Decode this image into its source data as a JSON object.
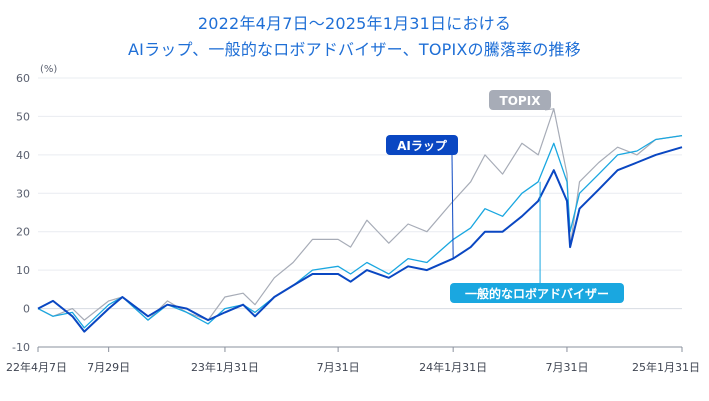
{
  "chart_data": {
    "type": "line",
    "title": [
      "2022年4月7日〜2025年1月31日における",
      "AIラップ、一般的なロボアドバイザー、TOPIXの騰落率の推移"
    ],
    "y_unit": "(%)",
    "ylim": [
      -10,
      60
    ],
    "y_ticks": [
      "60",
      "50",
      "40",
      "30",
      "20",
      "10",
      "0",
      "-10"
    ],
    "x_tick_labels": [
      "22年4月7日",
      "7月29日",
      "23年1月31日",
      "7月31日",
      "24年1月31日",
      "7月31日",
      "25年1月31日"
    ],
    "x_tick_dates": [
      "2022-04-07",
      "2022-07-29",
      "2023-01-31",
      "2023-07-31",
      "2024-01-31",
      "2024-07-31",
      "2025-01-31"
    ],
    "grid": true,
    "series": [
      {
        "name": "TOPIX",
        "color": "#a7acb7",
        "points": [
          [
            "2022-04-07",
            0
          ],
          [
            "2022-05-01",
            -2
          ],
          [
            "2022-06-01",
            0
          ],
          [
            "2022-06-20",
            -3
          ],
          [
            "2022-07-29",
            2
          ],
          [
            "2022-08-20",
            3
          ],
          [
            "2022-09-30",
            -3
          ],
          [
            "2022-10-31",
            2
          ],
          [
            "2022-12-01",
            -1
          ],
          [
            "2023-01-04",
            -3
          ],
          [
            "2023-01-31",
            3
          ],
          [
            "2023-03-01",
            4
          ],
          [
            "2023-03-20",
            1
          ],
          [
            "2023-04-20",
            8
          ],
          [
            "2023-05-20",
            12
          ],
          [
            "2023-06-20",
            18
          ],
          [
            "2023-07-31",
            18
          ],
          [
            "2023-08-20",
            16
          ],
          [
            "2023-09-15",
            23
          ],
          [
            "2023-10-20",
            17
          ],
          [
            "2023-11-20",
            22
          ],
          [
            "2023-12-20",
            20
          ],
          [
            "2024-01-31",
            28
          ],
          [
            "2024-02-28",
            33
          ],
          [
            "2024-03-22",
            40
          ],
          [
            "2024-04-19",
            35
          ],
          [
            "2024-05-20",
            43
          ],
          [
            "2024-06-15",
            40
          ],
          [
            "2024-07-10",
            52
          ],
          [
            "2024-07-31",
            35
          ],
          [
            "2024-08-05",
            16
          ],
          [
            "2024-08-20",
            33
          ],
          [
            "2024-09-20",
            38
          ],
          [
            "2024-10-20",
            42
          ],
          [
            "2024-11-20",
            40
          ],
          [
            "2024-12-20",
            44
          ],
          [
            "2025-01-31",
            45
          ]
        ]
      },
      {
        "name": "一般的なロボアドバイザー",
        "color": "#1aa7e0",
        "points": [
          [
            "2022-04-07",
            0
          ],
          [
            "2022-05-01",
            -2
          ],
          [
            "2022-06-01",
            -1
          ],
          [
            "2022-06-20",
            -5
          ],
          [
            "2022-07-29",
            1
          ],
          [
            "2022-08-20",
            3
          ],
          [
            "2022-09-30",
            -3
          ],
          [
            "2022-10-31",
            1
          ],
          [
            "2022-12-01",
            -1
          ],
          [
            "2023-01-04",
            -4
          ],
          [
            "2023-01-31",
            0
          ],
          [
            "2023-03-01",
            1
          ],
          [
            "2023-03-20",
            -1
          ],
          [
            "2023-04-20",
            3
          ],
          [
            "2023-05-20",
            6
          ],
          [
            "2023-06-20",
            10
          ],
          [
            "2023-07-31",
            11
          ],
          [
            "2023-08-20",
            9
          ],
          [
            "2023-09-15",
            12
          ],
          [
            "2023-10-20",
            9
          ],
          [
            "2023-11-20",
            13
          ],
          [
            "2023-12-20",
            12
          ],
          [
            "2024-01-31",
            18
          ],
          [
            "2024-02-28",
            21
          ],
          [
            "2024-03-22",
            26
          ],
          [
            "2024-04-19",
            24
          ],
          [
            "2024-05-20",
            30
          ],
          [
            "2024-06-15",
            33
          ],
          [
            "2024-07-10",
            43
          ],
          [
            "2024-07-31",
            33
          ],
          [
            "2024-08-05",
            20
          ],
          [
            "2024-08-20",
            30
          ],
          [
            "2024-09-20",
            35
          ],
          [
            "2024-10-20",
            40
          ],
          [
            "2024-11-20",
            41
          ],
          [
            "2024-12-20",
            44
          ],
          [
            "2025-01-31",
            45
          ]
        ]
      },
      {
        "name": "AIラップ",
        "color": "#0a47c2",
        "points": [
          [
            "2022-04-07",
            0
          ],
          [
            "2022-05-01",
            2
          ],
          [
            "2022-06-01",
            -2
          ],
          [
            "2022-06-20",
            -6
          ],
          [
            "2022-07-29",
            0
          ],
          [
            "2022-08-20",
            3
          ],
          [
            "2022-09-30",
            -2
          ],
          [
            "2022-10-31",
            1
          ],
          [
            "2022-12-01",
            0
          ],
          [
            "2023-01-04",
            -3
          ],
          [
            "2023-01-31",
            -1
          ],
          [
            "2023-03-01",
            1
          ],
          [
            "2023-03-20",
            -2
          ],
          [
            "2023-04-20",
            3
          ],
          [
            "2023-05-20",
            6
          ],
          [
            "2023-06-20",
            9
          ],
          [
            "2023-07-31",
            9
          ],
          [
            "2023-08-20",
            7
          ],
          [
            "2023-09-15",
            10
          ],
          [
            "2023-10-20",
            8
          ],
          [
            "2023-11-20",
            11
          ],
          [
            "2023-12-20",
            10
          ],
          [
            "2024-01-31",
            13
          ],
          [
            "2024-02-28",
            16
          ],
          [
            "2024-03-22",
            20
          ],
          [
            "2024-04-19",
            20
          ],
          [
            "2024-05-20",
            24
          ],
          [
            "2024-06-15",
            28
          ],
          [
            "2024-07-10",
            36
          ],
          [
            "2024-07-31",
            28
          ],
          [
            "2024-08-05",
            16
          ],
          [
            "2024-08-20",
            26
          ],
          [
            "2024-09-20",
            31
          ],
          [
            "2024-10-20",
            36
          ],
          [
            "2024-11-20",
            38
          ],
          [
            "2024-12-20",
            40
          ],
          [
            "2025-01-31",
            42
          ]
        ]
      }
    ],
    "annotations": [
      {
        "text": "TOPIX",
        "series": "TOPIX",
        "anchor_date": "2024-07-10",
        "anchor_value": 52,
        "bg": "#a7acb7"
      },
      {
        "text": "AIラップ",
        "series": "AIラップ",
        "anchor_date": "2024-01-31",
        "anchor_value": 13,
        "bg": "#0a47c2"
      },
      {
        "text": "一般的なロボアドバイザー",
        "series": "一般的なロボアドバイザー",
        "anchor_date": "2024-06-18",
        "anchor_value": 33,
        "bg": "#1aa7e0"
      }
    ]
  }
}
